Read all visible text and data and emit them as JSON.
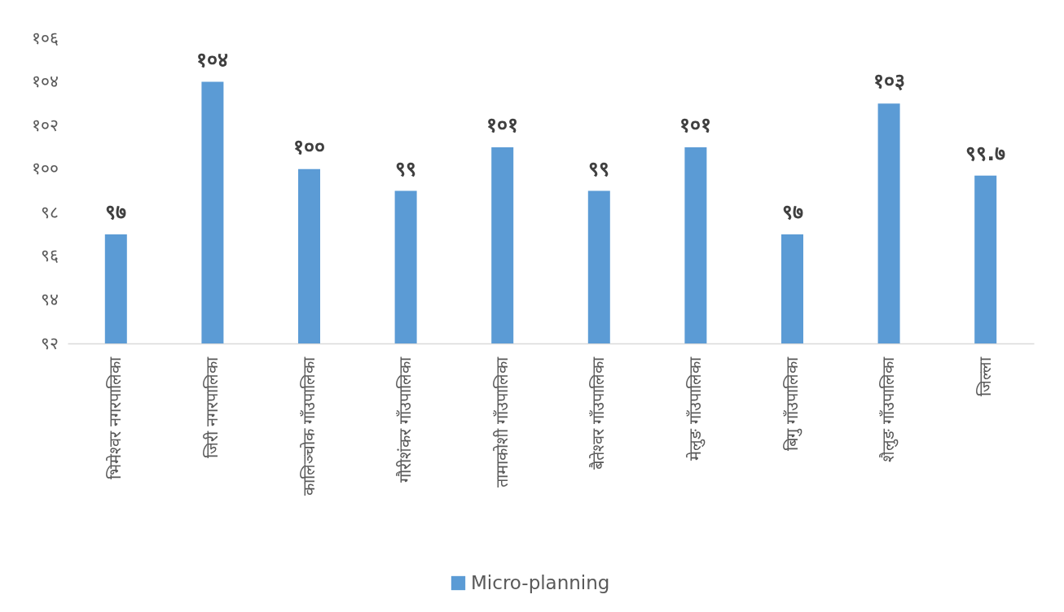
{
  "chart_data": {
    "type": "bar",
    "categories": [
      "भिमेश्वर नगरपालिका",
      "जिरी नगरपालिका",
      "कालिञ्चोक गाँउपालिका",
      "गौरीशंकर गाँउपालिका",
      "तामाकोशी गाँउपालिका",
      "बैतेश्वर गाँउपालिका",
      "मेलुङ गाँउपालिका",
      "बिगु गाँउपालिका",
      "शैलुङ गाँउपालिका",
      "जिल्ला"
    ],
    "series": [
      {
        "name": "Micro-planning",
        "color": "#5b9bd5",
        "values": [
          97,
          104,
          100,
          99,
          101,
          99,
          101,
          97,
          103,
          99.7
        ],
        "value_labels": [
          "९७",
          "१०४",
          "१००",
          "९९",
          "१०१",
          "९९",
          "१०१",
          "९७",
          "१०३",
          "९९.७"
        ]
      }
    ],
    "ylim": [
      92,
      106
    ],
    "yticks": [
      {
        "value": 92,
        "label": "९२"
      },
      {
        "value": 94,
        "label": "९४"
      },
      {
        "value": 96,
        "label": "९६"
      },
      {
        "value": 98,
        "label": "९८"
      },
      {
        "value": 100,
        "label": "१००"
      },
      {
        "value": 102,
        "label": "१०२"
      },
      {
        "value": 104,
        "label": "१०४"
      },
      {
        "value": 106,
        "label": "१०६"
      }
    ],
    "grid": false,
    "legend": "bottom"
  }
}
